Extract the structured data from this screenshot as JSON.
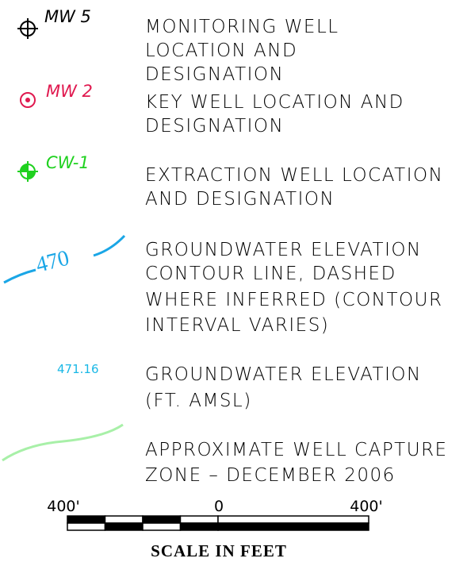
{
  "legend": {
    "items": [
      {
        "symbol_label": "MW 5",
        "description": [
          "MONITORING WELL",
          "LOCATION AND",
          "DESIGNATION"
        ]
      },
      {
        "symbol_label": "MW 2",
        "description": [
          "KEY WELL LOCATION AND",
          "DESIGNATION"
        ]
      },
      {
        "symbol_label": "CW-1",
        "description": [
          "EXTRACTION WELL LOCATION",
          "AND DESIGNATION"
        ]
      },
      {
        "symbol_label": "470",
        "description": [
          "GROUNDWATER ELEVATION",
          "CONTOUR LINE, DASHED",
          "WHERE INFERRED (CONTOUR",
          "INTERVAL VARIES)"
        ]
      },
      {
        "symbol_label": "471.16",
        "description": [
          "GROUNDWATER ELEVATION",
          "(FT. AMSL)"
        ]
      },
      {
        "description": [
          "APPROXIMATE WELL CAPTURE",
          "ZONE – DECEMBER 2006"
        ]
      }
    ]
  },
  "scale": {
    "labels": [
      "400'",
      "0",
      "400'"
    ],
    "title": "SCALE IN FEET"
  }
}
